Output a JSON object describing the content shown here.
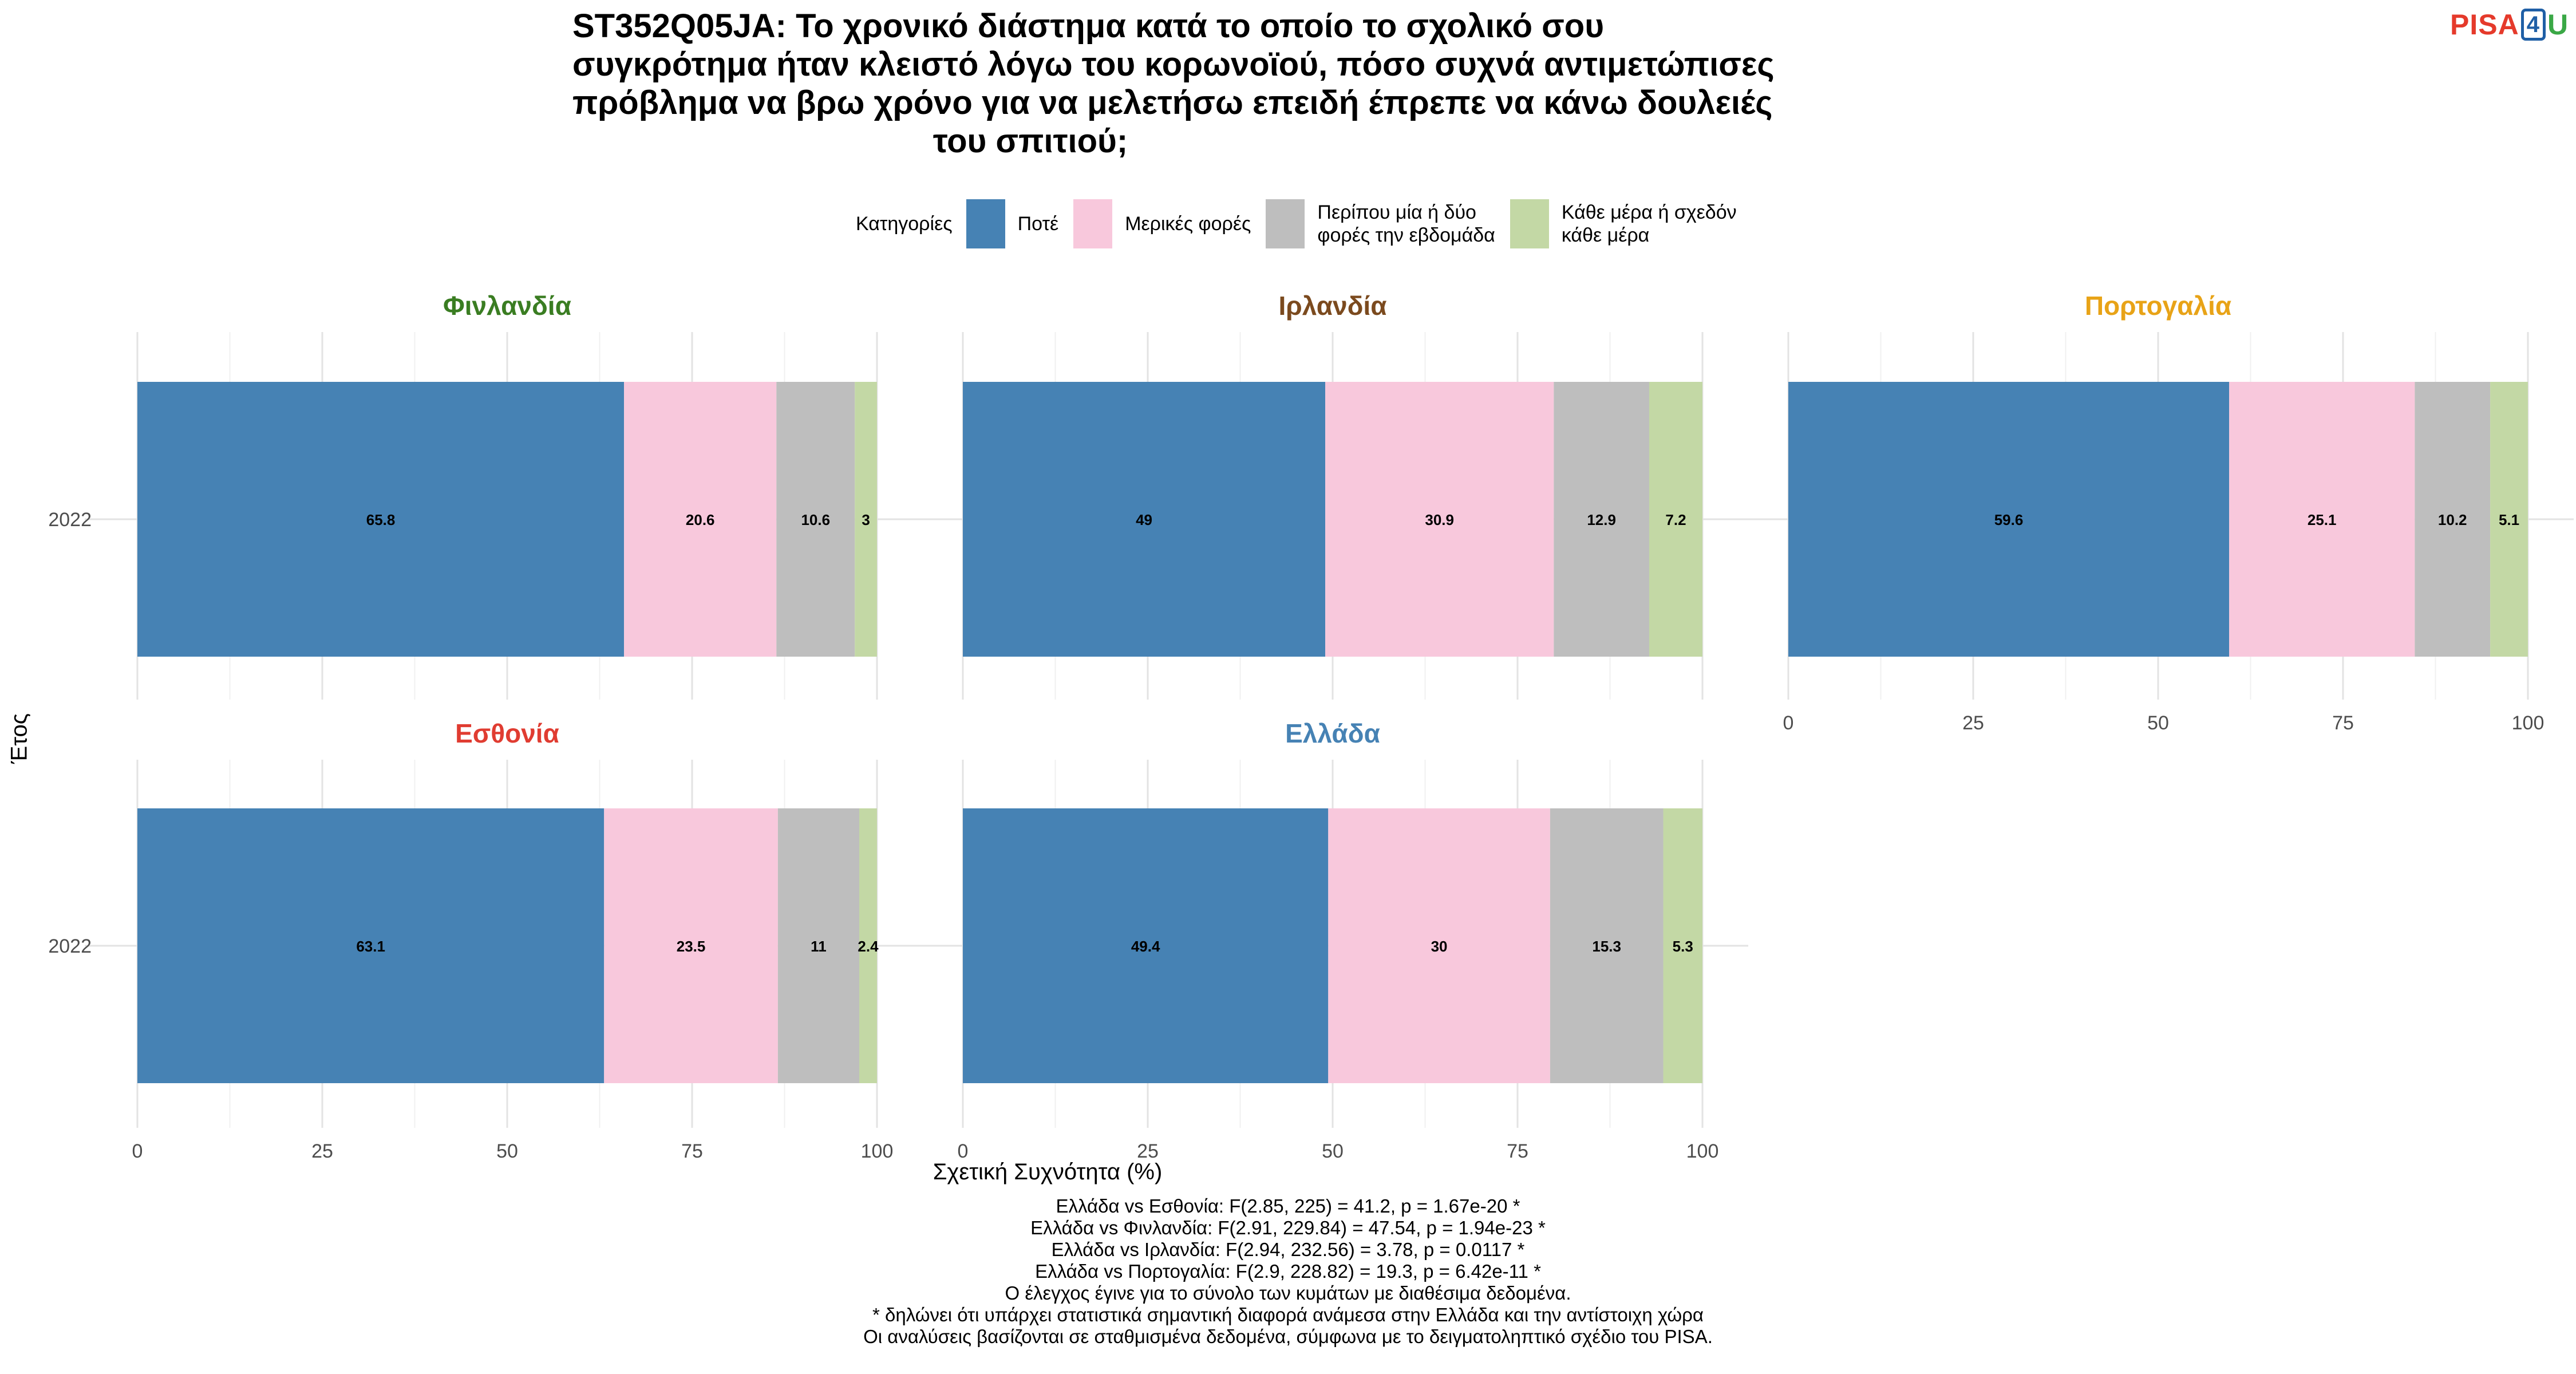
{
  "title_lines": [
    "ST352Q05JA: Το χρονικό διάστημα κατά το οποίο το σχολικό σου",
    "συγκρότημα ήταν κλειστό λόγω του κορωνοϊού, πόσο συχνά αντιμετώπισες",
    "πρόβλημα να βρω χρόνο για να μελετήσω επειδή έπρεπε να κάνω δουλειές",
    "του σπιτιού;"
  ],
  "logo": {
    "pisa": "PISA",
    "four": "4",
    "u": "U"
  },
  "legend": {
    "title": "Κατηγορίες",
    "items": [
      {
        "label": "Ποτέ",
        "color": "#4682B4"
      },
      {
        "label": "Μερικές φορές",
        "color": "#F8C8DC"
      },
      {
        "label": "Περίπου μία ή δύο\nφορές την εβδομάδα",
        "color": "#BEBEBE"
      },
      {
        "label": "Κάθε μέρα ή σχεδόν\nκάθε μέρα",
        "color": "#C3D8A5"
      }
    ]
  },
  "axis": {
    "ylabel": "Έτος",
    "xlabel": "Σχετική Συχνότητα (%)",
    "xlim": [
      0,
      100
    ],
    "xticks": [
      0,
      25,
      50,
      75,
      100
    ],
    "ytick": "2022"
  },
  "chart_data": {
    "type": "bar",
    "orientation": "horizontal",
    "stacked": true,
    "categories": [
      "2022"
    ],
    "series_names": [
      "Ποτέ",
      "Μερικές φορές",
      "Περίπου μία ή δύο φορές την εβδομάδα",
      "Κάθε μέρα ή σχεδόν κάθε μέρα"
    ],
    "panels": [
      {
        "country": "Φινλανδία",
        "title_color": "#3A7D22",
        "values": [
          65.8,
          20.6,
          10.6,
          3
        ]
      },
      {
        "country": "Ιρλανδία",
        "title_color": "#7B4A1E",
        "values": [
          49,
          30.9,
          12.9,
          7.2
        ]
      },
      {
        "country": "Πορτογαλία",
        "title_color": "#E8A317",
        "values": [
          59.6,
          25.1,
          10.2,
          5.1
        ]
      },
      {
        "country": "Εσθονία",
        "title_color": "#E03C31",
        "values": [
          63.1,
          23.5,
          11,
          2.4
        ]
      },
      {
        "country": "Ελλάδα",
        "title_color": "#4682B4",
        "values": [
          49.4,
          30,
          15.3,
          5.3
        ]
      }
    ],
    "xlim": [
      0,
      100
    ],
    "grid": true
  },
  "footnotes": [
    "Ελλάδα vs Εσθονία: F(2.85, 225) = 41.2, p = 1.67e-20 *",
    "Ελλάδα vs Φινλανδία: F(2.91, 229.84) = 47.54, p = 1.94e-23 *",
    "Ελλάδα vs Ιρλανδία: F(2.94, 232.56) = 3.78, p = 0.0117 *",
    "Ελλάδα vs Πορτογαλία: F(2.9, 228.82) = 19.3, p = 6.42e-11 *",
    "Ο έλεγχος έγινε για το σύνολο των κυμάτων με διαθέσιμα δεδομένα.",
    "* δηλώνει ότι υπάρχει στατιστικά σημαντική διαφορά ανάμεσα στην Ελλάδα και την αντίστοιχη χώρα",
    "Οι αναλύσεις βασίζονται σε σταθμισμένα δεδομένα, σύμφωνα με το δειγματοληπτικό σχέδιο του PISA."
  ]
}
